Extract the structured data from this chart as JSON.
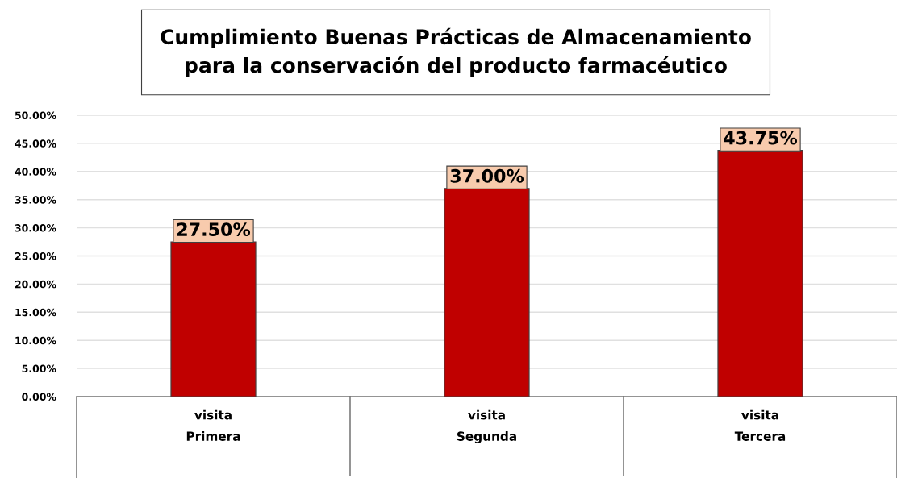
{
  "chart_data": {
    "type": "bar",
    "title": "Cumplimiento Buenas Prácticas de Almacenamiento\npara la conservación del producto farmacéutico",
    "categories": [
      "visita\nPrimera",
      "visita\nSegunda",
      "visita\nTercera"
    ],
    "values": [
      27.5,
      37.0,
      43.75
    ],
    "color": "#c00000",
    "value_labels": [
      "27.50%",
      "37.00%",
      "43.75%"
    ],
    "ylim": [
      0,
      50
    ],
    "yticks": [
      {
        "value": 0,
        "label": "0.00%"
      },
      {
        "value": 5,
        "label": "5.00%"
      },
      {
        "value": 10,
        "label": "10.00%"
      },
      {
        "value": 15,
        "label": "15.00%"
      },
      {
        "value": 20,
        "label": "20.00%"
      },
      {
        "value": 25,
        "label": "25.00%"
      },
      {
        "value": 30,
        "label": "30.00%"
      },
      {
        "value": 35,
        "label": "35.00%"
      },
      {
        "value": 40,
        "label": "40.00%"
      },
      {
        "value": 45,
        "label": "45.00%"
      },
      {
        "value": 50,
        "label": "50.00%"
      }
    ],
    "grid": "y",
    "legend": false
  }
}
